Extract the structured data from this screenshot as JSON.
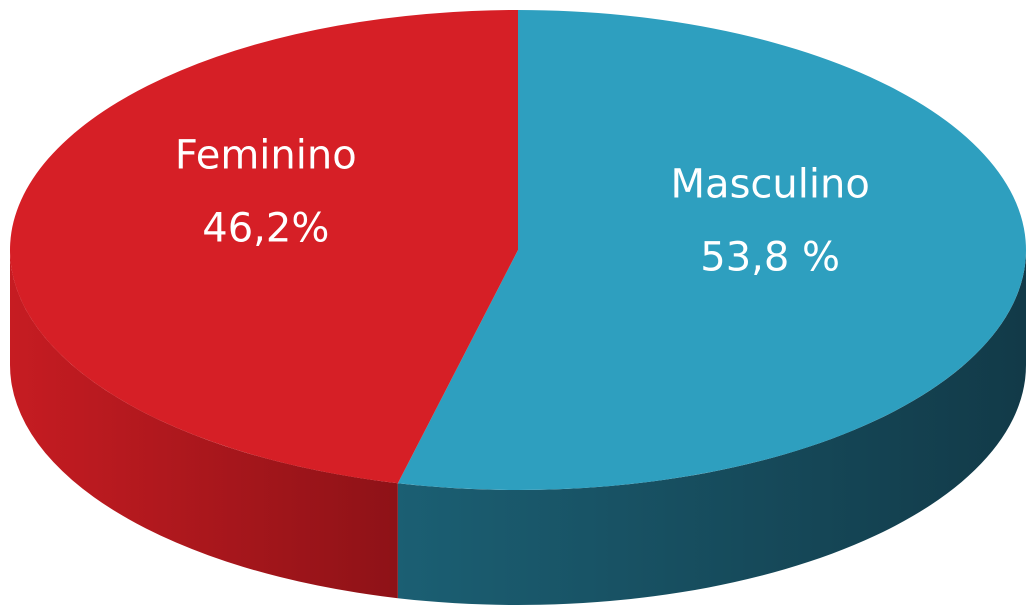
{
  "chart_data": {
    "type": "pie",
    "categories": [
      "Masculino",
      "Feminino"
    ],
    "values": [
      53.8,
      46.2
    ],
    "value_labels": [
      "53,8 %",
      "46,2%"
    ],
    "colors": [
      "#2e9fbf",
      "#d61f26"
    ]
  }
}
